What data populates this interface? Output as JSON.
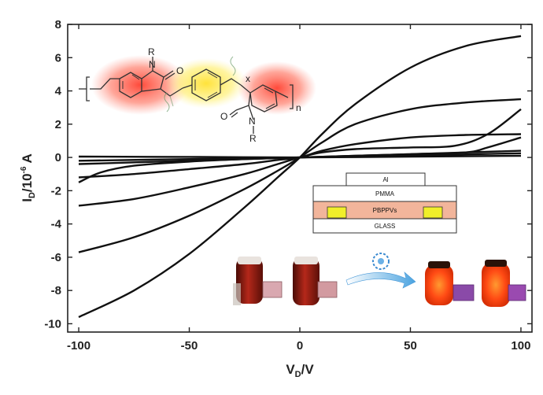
{
  "chart_data": {
    "type": "line",
    "xlabel_main": "V",
    "xlabel_sub": "D",
    "xlabel_tail": "/V",
    "ylabel_main": "I",
    "ylabel_sub": "D",
    "ylabel_tail": "/10",
    "ylabel_exp": "-6",
    "ylabel_unit": " A",
    "xlim": [
      -105,
      105
    ],
    "ylim": [
      -10.5,
      8
    ],
    "xticks": [
      -100,
      -50,
      0,
      50,
      100
    ],
    "yticks": [
      -10,
      -8,
      -6,
      -4,
      -2,
      0,
      2,
      4,
      6,
      8
    ],
    "xtick_labels": [
      "-100",
      "-50",
      "0",
      "50",
      "100"
    ],
    "ytick_labels": [
      "-10",
      "-8",
      "-6",
      "-4",
      "-2",
      "0",
      "2",
      "4",
      "6",
      "8"
    ],
    "series": [
      {
        "x": [
          -100,
          -75,
          -50,
          -25,
          -10,
          0,
          10,
          25,
          50,
          75,
          100
        ],
        "y": [
          -9.6,
          -8.0,
          -5.8,
          -3.0,
          -1.2,
          0.0,
          1.4,
          3.2,
          5.4,
          6.7,
          7.3
        ]
      },
      {
        "x": [
          -100,
          -75,
          -50,
          -25,
          -10,
          0,
          10,
          25,
          50,
          75,
          100
        ],
        "y": [
          -5.7,
          -4.8,
          -3.5,
          -1.9,
          -0.8,
          0.0,
          0.9,
          2.0,
          2.9,
          3.3,
          3.5
        ]
      },
      {
        "x": [
          -100,
          -75,
          -50,
          -25,
          -10,
          0,
          10,
          25,
          50,
          70,
          85,
          100
        ],
        "y": [
          -2.9,
          -2.5,
          -1.8,
          -1.0,
          -0.4,
          0.0,
          0.3,
          0.5,
          0.6,
          0.7,
          1.4,
          2.9
        ]
      },
      {
        "x": [
          -100,
          -75,
          -50,
          -25,
          -10,
          0,
          10,
          25,
          50,
          75,
          100
        ],
        "y": [
          -1.2,
          -1.0,
          -0.7,
          -0.4,
          -0.15,
          0.0,
          0.4,
          0.8,
          1.2,
          1.35,
          1.4
        ]
      },
      {
        "x": [
          -100,
          -90,
          -75,
          -50,
          -25,
          0,
          25,
          50,
          75,
          85,
          100
        ],
        "y": [
          -1.5,
          -0.9,
          -0.5,
          -0.25,
          -0.1,
          0.0,
          0.1,
          0.2,
          0.3,
          0.6,
          1.2
        ]
      },
      {
        "x": [
          -100,
          -50,
          0,
          50,
          100
        ],
        "y": [
          -0.4,
          -0.2,
          0.0,
          0.2,
          0.4
        ]
      },
      {
        "x": [
          -100,
          -50,
          0,
          50,
          100
        ],
        "y": [
          -0.2,
          -0.1,
          0.0,
          0.12,
          0.25
        ]
      },
      {
        "x": [
          -100,
          -50,
          0,
          50,
          100
        ],
        "y": [
          0.05,
          0.03,
          0.0,
          0.05,
          0.1
        ]
      }
    ]
  },
  "molecule": {
    "r_top": "R",
    "n_top": "N",
    "o_top": "O",
    "x_label": "x",
    "n_sub": "n",
    "o_bottom": "O",
    "n_bottom": "N",
    "r_bottom": "R"
  },
  "device": {
    "layers": [
      "Al",
      "PMMA",
      "PBPPVs",
      "GLASS"
    ]
  },
  "icons": [
    "vial-icon",
    "uv-lamp-icon",
    "arrow-icon"
  ],
  "colors": {
    "curve": "#111111",
    "highlight_red": "#ff5a4a",
    "highlight_yellow": "#ffe84a",
    "pbppvs_layer": "#f2b59b",
    "electrode": "#f1ef2a",
    "vial_dark": "#8a1d10",
    "vial_bright": "#ff4a1a"
  }
}
